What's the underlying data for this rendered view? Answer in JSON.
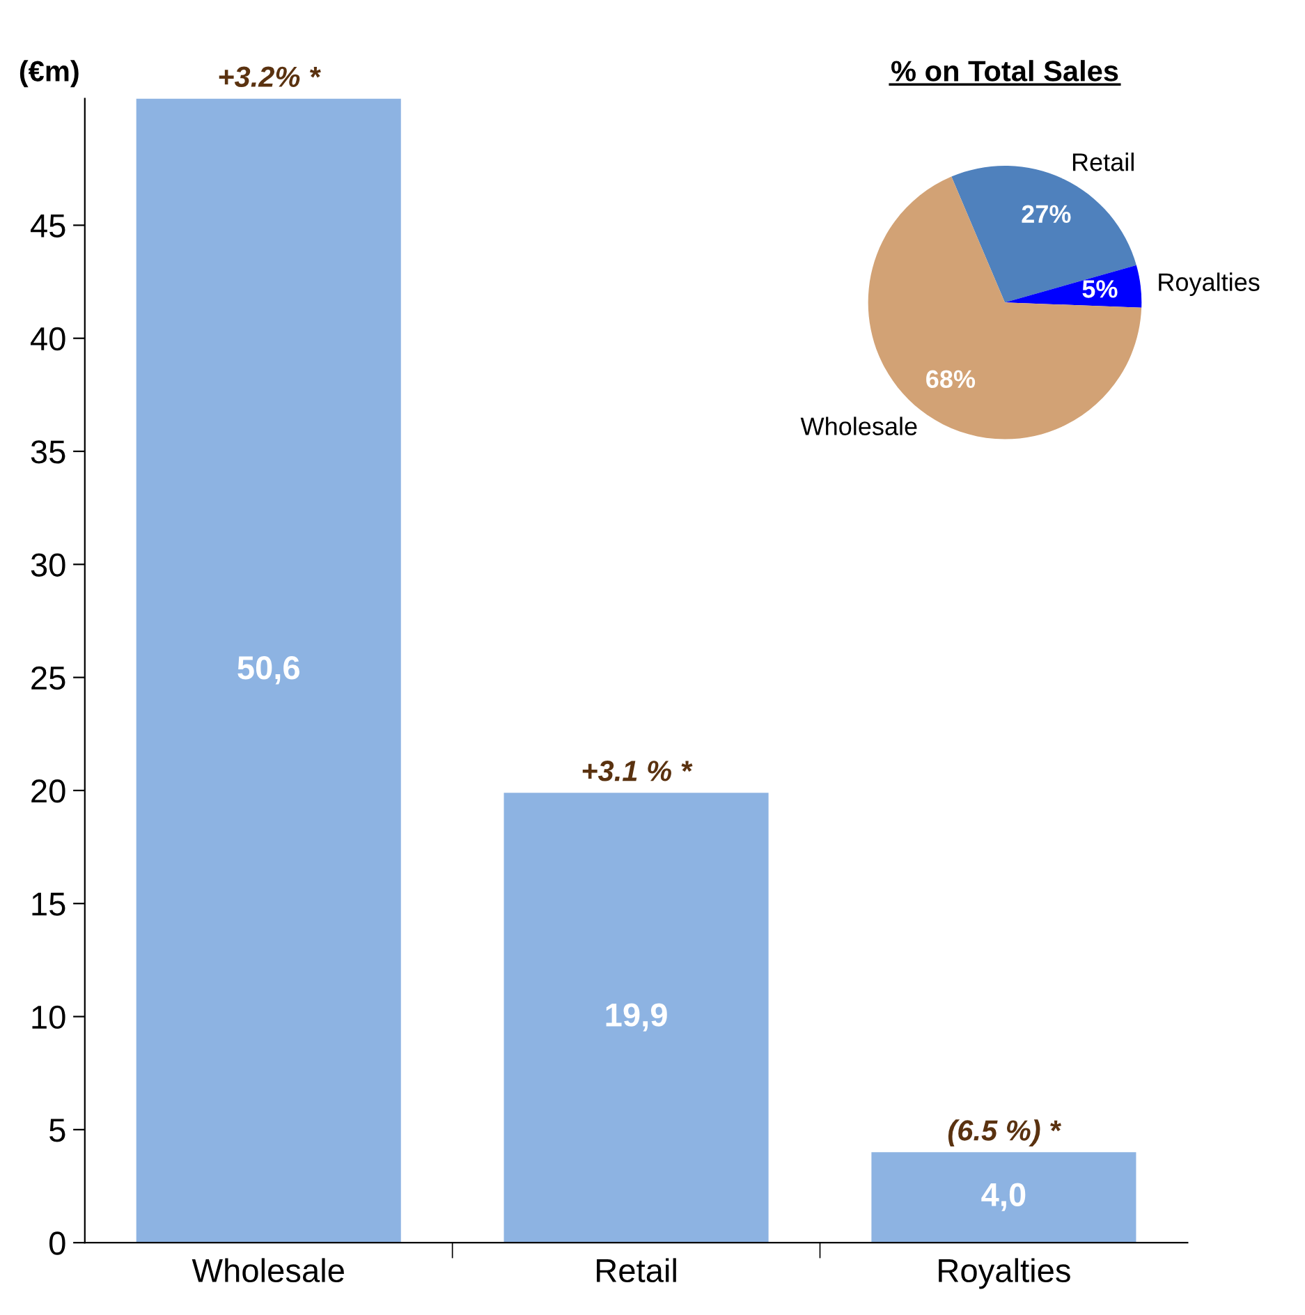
{
  "chart_data": [
    {
      "type": "bar",
      "ylabel": "(€m)",
      "categories": [
        "Wholesale",
        "Retail",
        "Royalties"
      ],
      "values": [
        50.6,
        19.9,
        4.0
      ],
      "value_labels": [
        "50,6",
        "19,9",
        "4,0"
      ],
      "color": "#8db3e2",
      "ylim": [
        0,
        50.6
      ],
      "yticks": [
        0,
        5,
        10,
        15,
        20,
        25,
        30,
        35,
        40,
        45
      ],
      "grid": false,
      "legend": false,
      "annotations": [
        {
          "text": "+3.2% *",
          "x": "Wholesale",
          "y": 50.6
        },
        {
          "text": "+3.1 % *",
          "x": "Retail",
          "y": 19.9
        },
        {
          "text": "(6.5 %) *",
          "x": "Royalties",
          "y": 4.0
        }
      ]
    },
    {
      "type": "pie",
      "title": "% on Total Sales",
      "categories": [
        "Retail",
        "Royalties",
        "Wholesale"
      ],
      "values": [
        27,
        5,
        68
      ],
      "value_labels": [
        "27%",
        "5%",
        "68%"
      ],
      "colors": [
        "#4f81bd",
        "#0000ff",
        "#d2a275"
      ],
      "legend": false
    }
  ]
}
